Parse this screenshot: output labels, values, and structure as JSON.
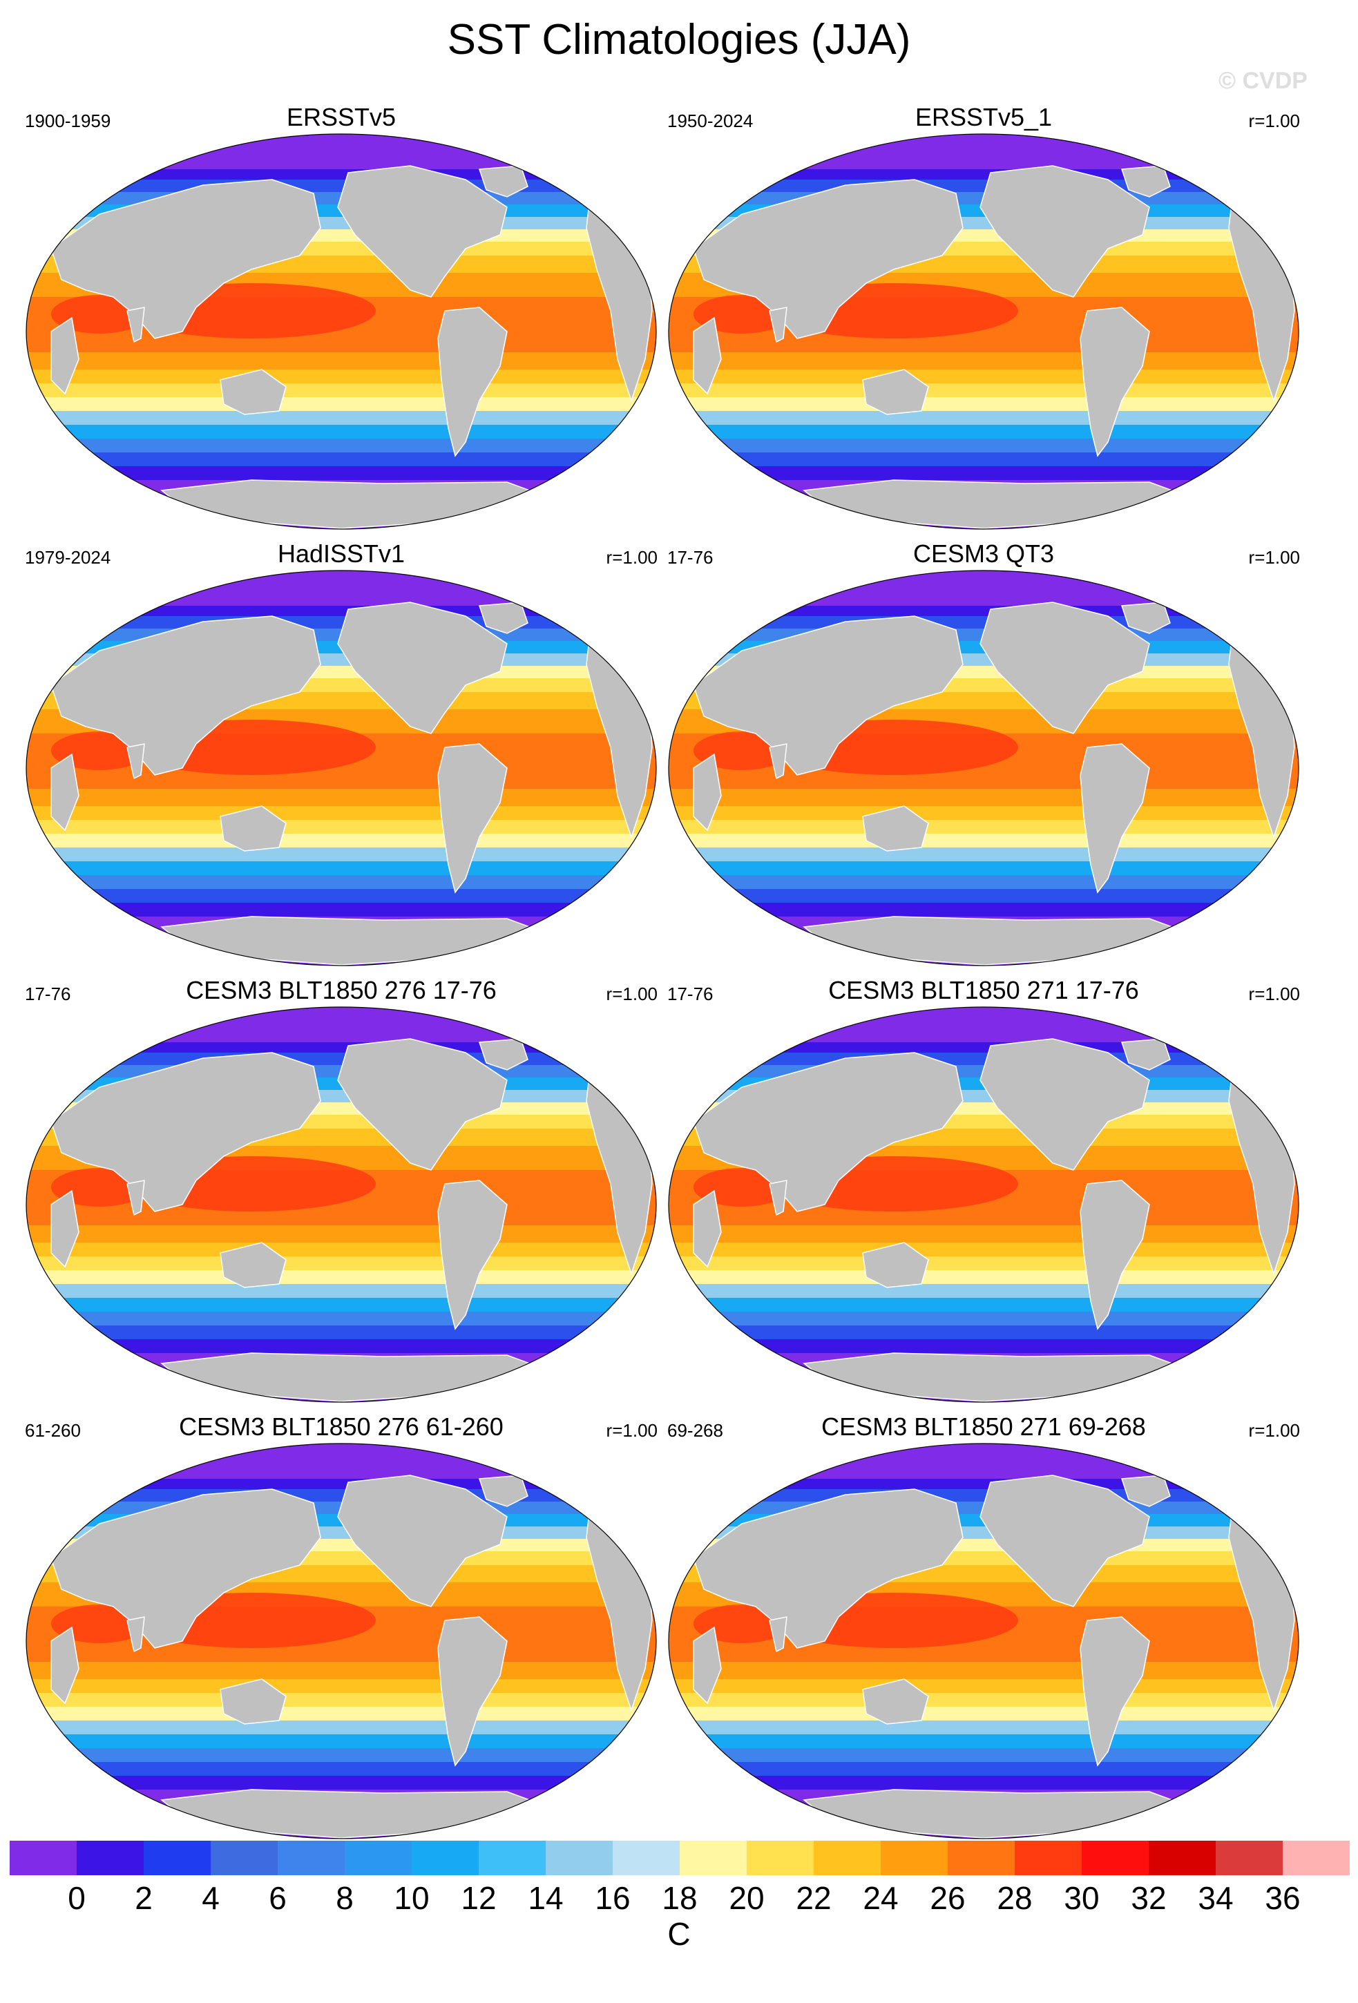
{
  "title": "SST Climatologies (JJA)",
  "watermark": "© CVDP",
  "panels": [
    {
      "title": "ERSSTv5",
      "period": "1900-1959",
      "corr": ""
    },
    {
      "title": "ERSSTv5_1",
      "period": "1950-2024",
      "corr": "r=1.00"
    },
    {
      "title": "HadISSTv1",
      "period": "1979-2024",
      "corr": "r=1.00"
    },
    {
      "title": "CESM3 QT3",
      "period": "17-76",
      "corr": "r=1.00"
    },
    {
      "title": "CESM3 BLT1850 276 17-76",
      "period": "17-76",
      "corr": "r=1.00"
    },
    {
      "title": "CESM3 BLT1850 271 17-76",
      "period": "17-76",
      "corr": "r=1.00"
    },
    {
      "title": "CESM3 BLT1850 276 61-260",
      "period": "61-260",
      "corr": "r=1.00"
    },
    {
      "title": "CESM3 BLT1850 271 69-268",
      "period": "69-268",
      "corr": "r=1.00"
    }
  ],
  "colorbar": {
    "unit": "C",
    "labels": [
      "0",
      "2",
      "4",
      "6",
      "8",
      "10",
      "12",
      "14",
      "16",
      "18",
      "20",
      "22",
      "24",
      "26",
      "28",
      "30",
      "32",
      "34",
      "36"
    ],
    "colors": [
      "#7f2be8",
      "#3d14e6",
      "#1f3cf0",
      "#3f6be0",
      "#3f83ec",
      "#2b97f0",
      "#17a9f4",
      "#3fbff7",
      "#93cdee",
      "#bfe3f5",
      "#fff7a1",
      "#ffe04f",
      "#ffc21f",
      "#ff9f0f",
      "#ff7511",
      "#ff3c0f",
      "#ff0e0e",
      "#d90000",
      "#db3b3b",
      "#ffb2b2"
    ]
  },
  "map_colors": {
    "land": "#c0c0c0",
    "ocean_ramp": [
      "#7f2be8",
      "#3d14e6",
      "#2b50ec",
      "#3f83ec",
      "#17a9f4",
      "#93cdee",
      "#fff7a1",
      "#ffe04f",
      "#ffc21f",
      "#ff9f0f",
      "#ff7511",
      "#ff3c0f"
    ]
  }
}
